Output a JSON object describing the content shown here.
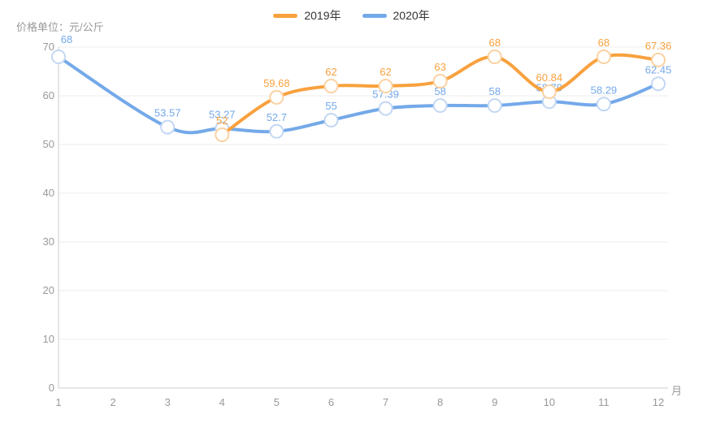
{
  "chart_data": {
    "type": "line",
    "unit_label": "价格单位：元/公斤",
    "x_axis_suffix": "月",
    "categories": [
      "1",
      "2",
      "3",
      "4",
      "5",
      "6",
      "7",
      "8",
      "9",
      "10",
      "11",
      "12"
    ],
    "y_ticks": [
      0,
      10,
      20,
      30,
      40,
      50,
      60,
      70
    ],
    "ylim": [
      0,
      70
    ],
    "grid": true,
    "smooth": true,
    "legend_position": "top-center",
    "series": [
      {
        "name": "2019年",
        "color": "#f8a13e",
        "marker_ring": "#fad2a2",
        "values": [
          null,
          null,
          null,
          52,
          59.68,
          62,
          62,
          63,
          68,
          60.84,
          68,
          67.36
        ]
      },
      {
        "name": "2020年",
        "color": "#74a9e9",
        "marker_ring": "#c3d7f4",
        "values": [
          68,
          null,
          53.57,
          53.27,
          52.7,
          55,
          57.39,
          58,
          58,
          58.79,
          58.29,
          62.45
        ]
      }
    ]
  },
  "style_colors": {
    "grid_line": "#eeeeee",
    "axis_line": "#cccccc",
    "tick_text": "#999999",
    "unit_text": "#999999",
    "legend_text": "#333333",
    "background": "#ffffff",
    "marker_fill": "#ffffff"
  }
}
